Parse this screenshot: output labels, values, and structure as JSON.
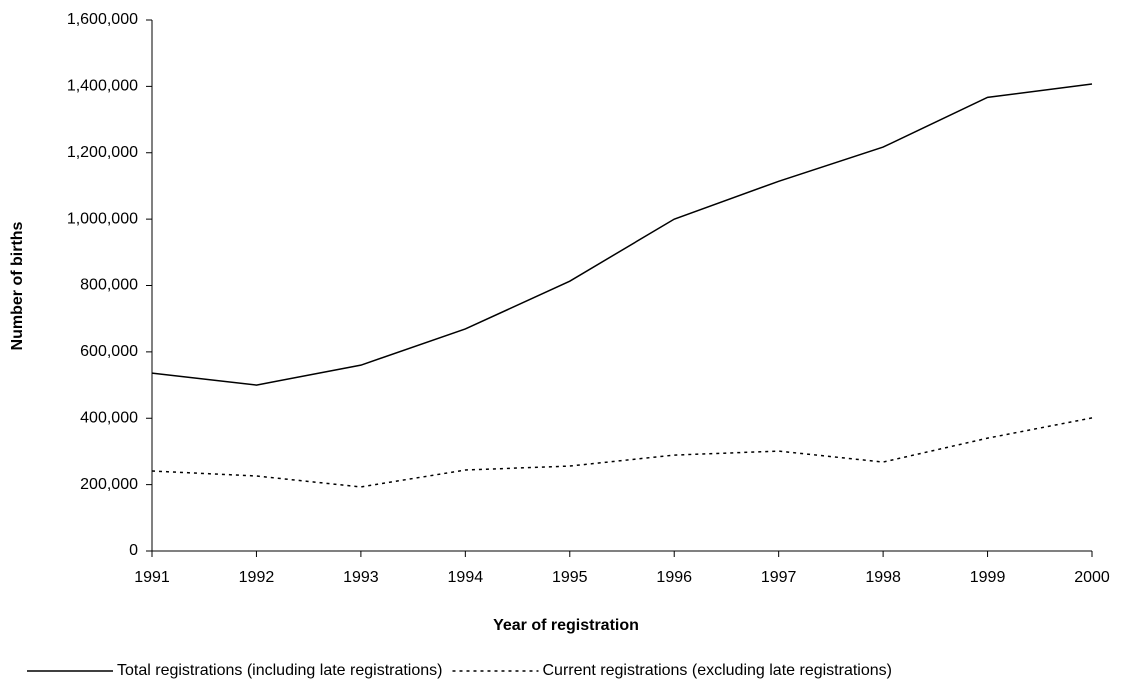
{
  "chart_data": {
    "type": "line",
    "x_label": "Year of registration",
    "y_label": "Number of births",
    "x": [
      1991,
      1992,
      1993,
      1994,
      1995,
      1996,
      1997,
      1998,
      1999,
      2000
    ],
    "xlim": [
      1991,
      2000
    ],
    "xticks": [
      1991,
      1992,
      1993,
      1994,
      1995,
      1996,
      1997,
      1998,
      1999,
      2000
    ],
    "ylim": [
      0,
      1600000
    ],
    "yticks": [
      0,
      {
        "value": 200000,
        "label": "200,000"
      },
      {
        "value": 400000,
        "label": "400,000"
      },
      {
        "value": 600000,
        "label": "600,000"
      },
      {
        "value": 800000,
        "label": "800,000"
      },
      {
        "value": 1000000,
        "label": "1,000,000"
      },
      {
        "value": 1200000,
        "label": "1,200,000"
      },
      {
        "value": 1400000,
        "label": "1,400,000"
      },
      {
        "value": 1600000,
        "label": "1,600,000"
      }
    ],
    "grid": false,
    "legend": "bottom",
    "series": [
      {
        "name": "Total registrations (including late registrations)",
        "color": "#000000",
        "dash": "solid",
        "values": [
          536000,
          500000,
          560000,
          669000,
          813000,
          1000000,
          1114000,
          1217000,
          1367000,
          1407000
        ]
      },
      {
        "name": "Current registrations (excluding late registrations)",
        "color": "#000000",
        "dash": "dotted",
        "values": [
          241000,
          226000,
          193000,
          244000,
          256000,
          289000,
          301000,
          268000,
          340000,
          401000
        ]
      }
    ]
  }
}
